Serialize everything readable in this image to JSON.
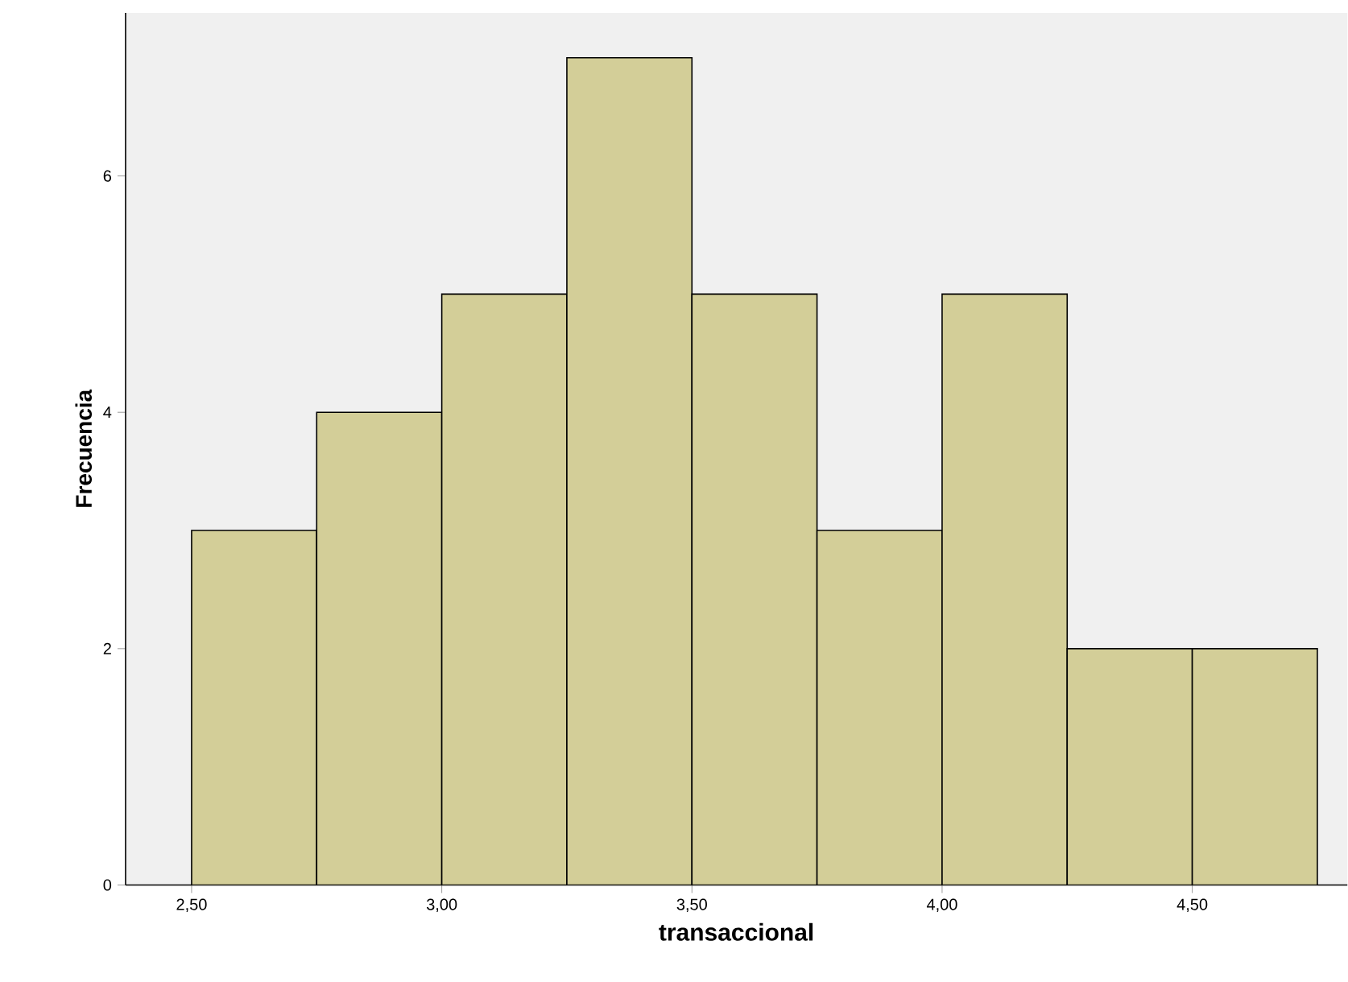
{
  "chart_data": {
    "type": "histogram",
    "xlabel": "transaccional",
    "ylabel": "Frecuencia",
    "bins": [
      2.5,
      2.75,
      3.0,
      3.25,
      3.5,
      3.75,
      4.0,
      4.25,
      4.5,
      4.75
    ],
    "values": [
      3,
      4,
      5,
      7,
      5,
      3,
      5,
      2,
      2
    ],
    "color": "#d3ce98",
    "xlim": [
      2.368,
      4.81
    ],
    "ylim": [
      0,
      7.38
    ],
    "xticks": [
      {
        "value": 2.5,
        "label": "2,50"
      },
      {
        "value": 3.0,
        "label": "3,00"
      },
      {
        "value": 3.5,
        "label": "3,50"
      },
      {
        "value": 4.0,
        "label": "4,00"
      },
      {
        "value": 4.5,
        "label": "4,50"
      }
    ],
    "yticks": [
      0,
      2,
      4,
      6
    ],
    "grid": false
  }
}
